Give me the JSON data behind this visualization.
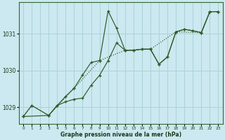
{
  "title": "Graphe pression niveau de la mer (hPa)",
  "bg_color": "#cce8f0",
  "grid_color": "#a8d4d8",
  "line_color": "#2d5a27",
  "xlim": [
    -0.5,
    23.5
  ],
  "ylim": [
    1028.55,
    1031.85
  ],
  "yticks": [
    1029,
    1030,
    1031
  ],
  "xticks": [
    0,
    1,
    2,
    3,
    4,
    5,
    6,
    7,
    8,
    9,
    10,
    11,
    12,
    13,
    14,
    15,
    16,
    17,
    18,
    19,
    20,
    21,
    22,
    23
  ],
  "series_main": {
    "x": [
      0,
      1,
      3,
      4,
      5,
      6,
      7,
      8,
      9,
      10,
      11,
      12,
      13,
      14,
      15,
      16,
      17,
      18,
      19,
      20,
      21,
      22,
      23
    ],
    "y": [
      1028.75,
      1029.05,
      1028.78,
      1029.05,
      1029.3,
      1029.52,
      1029.88,
      1030.22,
      1030.27,
      1031.62,
      1031.15,
      1030.55,
      1030.55,
      1030.58,
      1030.58,
      1030.17,
      1030.37,
      1031.05,
      1031.12,
      1031.08,
      1031.03,
      1031.6,
      1031.6
    ]
  },
  "series_second": {
    "x": [
      0,
      3,
      4,
      5,
      6,
      7,
      8,
      9,
      10,
      11,
      12,
      13,
      14,
      15,
      16,
      17,
      18,
      19,
      20,
      21,
      22,
      23
    ],
    "y": [
      1028.75,
      1028.78,
      1029.05,
      1029.15,
      1029.22,
      1029.25,
      1029.6,
      1029.87,
      1030.27,
      1030.75,
      1030.55,
      1030.55,
      1030.58,
      1030.58,
      1030.17,
      1030.37,
      1031.05,
      1031.12,
      1031.08,
      1031.03,
      1031.6,
      1031.6
    ]
  },
  "series_dotted": {
    "x": [
      0,
      1,
      3,
      6,
      9,
      12,
      15,
      18,
      21,
      22,
      23
    ],
    "y": [
      1028.75,
      1029.05,
      1028.78,
      1029.52,
      1030.27,
      1030.55,
      1030.58,
      1031.05,
      1031.03,
      1031.6,
      1031.6
    ]
  }
}
